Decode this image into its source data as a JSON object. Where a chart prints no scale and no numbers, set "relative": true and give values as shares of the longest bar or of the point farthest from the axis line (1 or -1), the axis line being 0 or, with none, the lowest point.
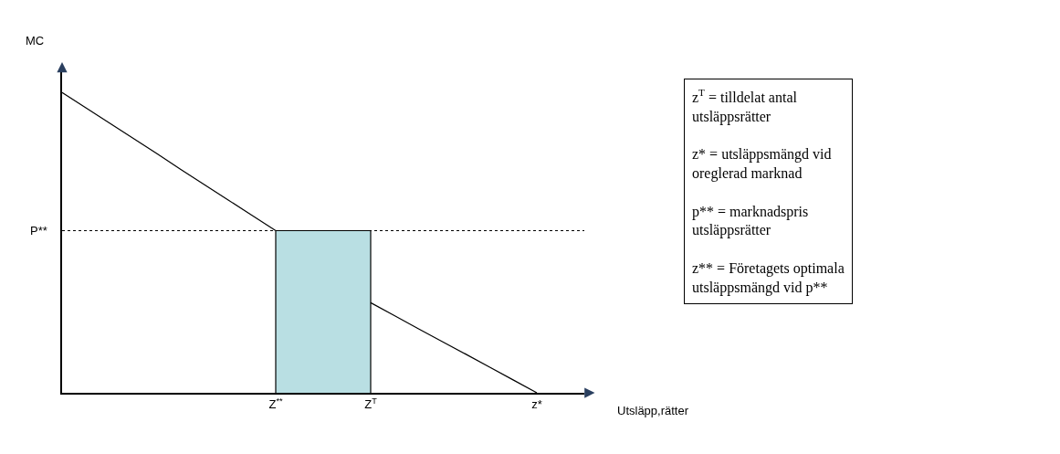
{
  "chart_data": {
    "type": "line",
    "relative": true,
    "xlabel": "Utsläpp,rätter",
    "ylabel": "MC",
    "categories": [
      null,
      null,
      null,
      null,
      null,
      null,
      null,
      null,
      null,
      "Z$^{**}$",
      null,
      null,
      null,
      "Z$^{T}$",
      null,
      null,
      null,
      null,
      null,
      null,
      "z*",
      null,
      null
    ],
    "series": [
      {
        "type": "area",
        "color": "#b9dfe3",
        "values": [
          null,
          null,
          null,
          null,
          null,
          null,
          null,
          null,
          null,
          0.54,
          0.54,
          0.54,
          0.54,
          0.54,
          null,
          null,
          null,
          null,
          null,
          null,
          null,
          null,
          null
        ]
      },
      {
        "color": "#000000",
        "values": [
          1,
          0.949,
          0.898,
          0.847,
          0.796,
          0.744,
          0.693,
          0.642,
          0.591,
          0.54,
          null,
          null,
          null,
          null,
          null,
          null,
          null,
          null,
          null,
          null,
          null,
          null,
          null
        ]
      },
      {
        "color": "#000000",
        "values": [
          null,
          null,
          null,
          null,
          null,
          null,
          null,
          null,
          null,
          null,
          null,
          null,
          null,
          0.3,
          0.257,
          0.214,
          0.171,
          0.129,
          0.086,
          0.043,
          0,
          null,
          null
        ]
      }
    ],
    "ref_lines": [
      {
        "axis": "y",
        "value": 0.54,
        "label": "P**",
        "line_style": "dotted",
        "color": "#000000"
      }
    ],
    "annotations": [
      "z$^{T}$ = tilldelat antal utsläppsrätter",
      "z* = utsläppsmängd vid oreglerad marknad",
      "p** = marknadspris utsläppsrätter",
      "z** = Företagets optimala utsläppsmängd vid p**"
    ],
    "marker": "none",
    "line_style": "solid"
  }
}
